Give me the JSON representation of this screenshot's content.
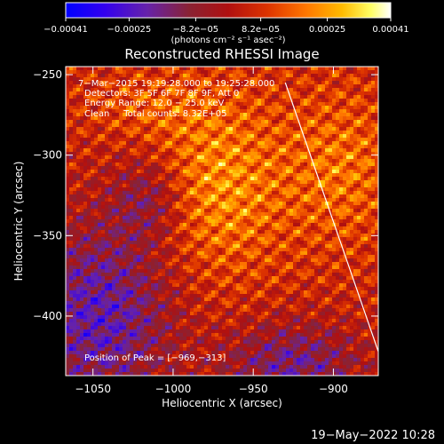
{
  "chart_data": {
    "type": "heatmap",
    "title": "Reconstructed RHESSI Image",
    "xlabel": "Heliocentric X (arcsec)",
    "ylabel": "Heliocentric Y (arcsec)",
    "xlim": [
      -1067,
      -872
    ],
    "ylim": [
      -437,
      -245
    ],
    "x_ticks": [
      {
        "value": -1050,
        "label": "−1050"
      },
      {
        "value": -1000,
        "label": "−1000"
      },
      {
        "value": -950,
        "label": "−950"
      },
      {
        "value": -900,
        "label": "−900"
      }
    ],
    "y_ticks": [
      {
        "value": -250,
        "label": "−250"
      },
      {
        "value": -300,
        "label": "−300"
      },
      {
        "value": -350,
        "label": "−350"
      },
      {
        "value": -400,
        "label": "−400"
      }
    ],
    "colorbar": {
      "range": [
        -0.00041,
        0.00041
      ],
      "tick_values": [
        -0.00041,
        -0.00025,
        -8.2e-05,
        8.2e-05,
        0.00025,
        0.00041
      ],
      "tick_labels": [
        "−0.00041",
        "−0.00025",
        "−8.2e−05",
        "8.2e−05",
        "0.00025",
        "0.00041"
      ],
      "units_label": "(photons cm⁻² s⁻¹ asec⁻²)",
      "colormap": [
        "#0000ff",
        "#3300ee",
        "#6622aa",
        "#8a2233",
        "#b01010",
        "#dd3300",
        "#ff7700",
        "#ffbb00",
        "#ffff66",
        "#ffffff"
      ]
    },
    "annotations": [
      "7−Mar−2015 19:19:28.000 to 19:25:28.000",
      "Detectors: 3F 5F 6F 7F 8F 9F, Att 0",
      "Energy Range: 12.0 − 25.0 keV",
      "Clean     Total counts: 8.32E+05"
    ],
    "peak_label": "Position of Peak = [−969,−313]",
    "peak": {
      "x": -969,
      "y": -313
    },
    "limb_line": [
      {
        "x": -930,
        "y": -255
      },
      {
        "x": -872,
        "y": -422
      }
    ]
  },
  "footer": {
    "date_stamp": "19−May−2022 10:28"
  }
}
